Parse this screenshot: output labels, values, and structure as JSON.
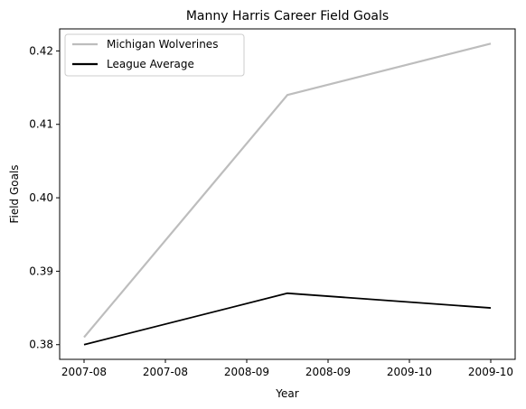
{
  "chart_data": {
    "type": "line",
    "title": "Manny Harris Career Field Goals",
    "xlabel": "Year",
    "ylabel": "Field Goals",
    "x_tick_labels": [
      "2007-08",
      "2007-08",
      "2008-09",
      "2008-09",
      "2009-10",
      "2009-10"
    ],
    "y_ticks": [
      0.38,
      0.39,
      0.4,
      0.41,
      0.42
    ],
    "y_tick_labels": [
      "0.38",
      "0.39",
      "0.40",
      "0.41",
      "0.42"
    ],
    "x": [
      "2007-08",
      "2008-09",
      "2009-10"
    ],
    "ylim": [
      0.378,
      0.423
    ],
    "grid": false,
    "legend_position": "top-left",
    "series": [
      {
        "name": "Michigan Wolverines",
        "values": [
          0.381,
          0.414,
          0.421
        ],
        "color": "#bdbdbd"
      },
      {
        "name": "League Average",
        "values": [
          0.38,
          0.387,
          0.385
        ],
        "color": "#000000"
      }
    ]
  }
}
